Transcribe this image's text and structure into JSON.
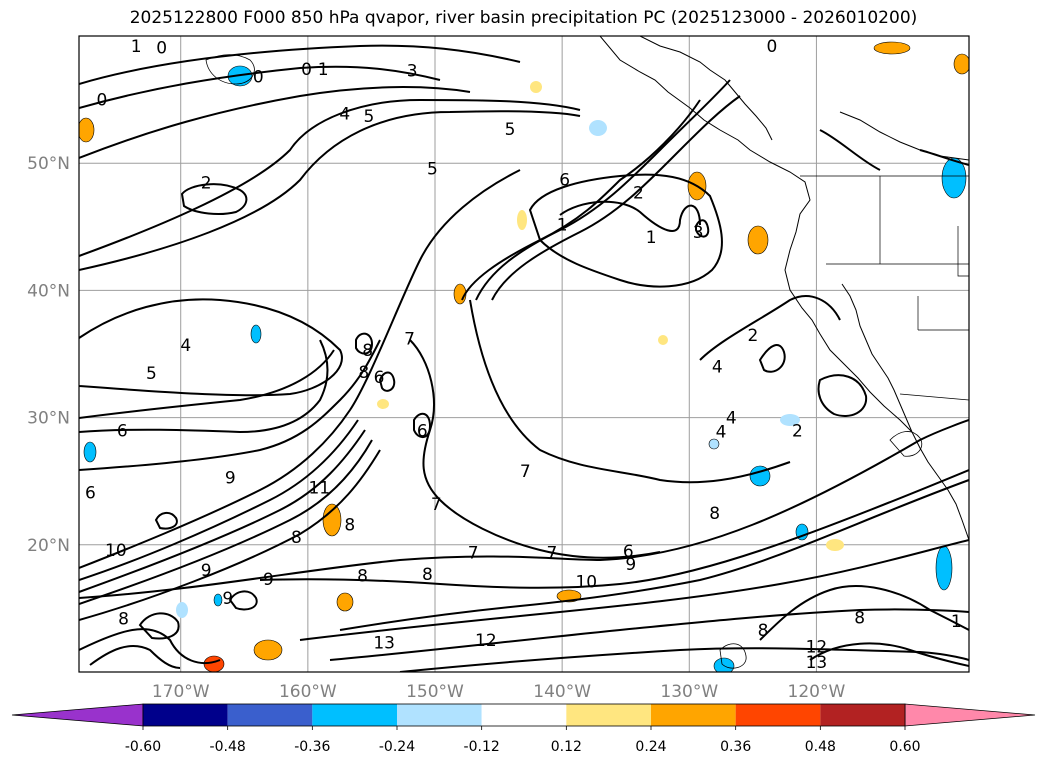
{
  "title": "2025122800 F000 850 hPa qvapor, river basin precipitation PC (2025123000 - 2026010200)",
  "map": {
    "lat_labels": [
      {
        "lat": 50,
        "label": "50°N"
      },
      {
        "lat": 40,
        "label": "40°N"
      },
      {
        "lat": 30,
        "label": "30°N"
      },
      {
        "lat": 20,
        "label": "20°N"
      }
    ],
    "lon_labels": [
      {
        "lon": -170,
        "label": "170°W"
      },
      {
        "lon": -160,
        "label": "160°W"
      },
      {
        "lon": -150,
        "label": "150°W"
      },
      {
        "lon": -140,
        "label": "140°W"
      },
      {
        "lon": -130,
        "label": "130°W"
      },
      {
        "lon": -120,
        "label": "120°W"
      }
    ],
    "extent": {
      "lon_min": -178,
      "lon_max": -108,
      "lat_min": 10,
      "lat_max": 60
    },
    "grid": true,
    "contour_field": "850 hPa qvapor",
    "shaded_field": "river basin precipitation PC"
  },
  "colorbar": {
    "levels": [
      "-0.60",
      "-0.48",
      "-0.36",
      "-0.24",
      "-0.12",
      "0.12",
      "0.24",
      "0.36",
      "0.48",
      "0.60"
    ],
    "colors": [
      "#9932cc",
      "#00008b",
      "#3a5fcd",
      "#00bfff",
      "#b0e2ff",
      "#ffffff",
      "#ffe680",
      "#ffa500",
      "#ff4500",
      "#b22222",
      "#ff88aa"
    ],
    "extend": "both"
  },
  "contour_labels": [
    {
      "text": "1",
      "lon": -173.5,
      "lat": 59.2
    },
    {
      "text": "0",
      "lon": -171.5,
      "lat": 59.1
    },
    {
      "text": "0",
      "lon": -163.9,
      "lat": 56.8
    },
    {
      "text": "1",
      "lon": -158.8,
      "lat": 57.4
    },
    {
      "text": "0",
      "lon": -160.1,
      "lat": 57.4
    },
    {
      "text": "3",
      "lon": -151.8,
      "lat": 57.3
    },
    {
      "text": "0",
      "lon": -176.2,
      "lat": 55.0
    },
    {
      "text": "4",
      "lon": -157.1,
      "lat": 53.9
    },
    {
      "text": "5",
      "lon": -155.2,
      "lat": 53.7
    },
    {
      "text": "5",
      "lon": -144.1,
      "lat": 52.7
    },
    {
      "text": "5",
      "lon": -150.2,
      "lat": 49.6
    },
    {
      "text": "2",
      "lon": -168.0,
      "lat": 48.5
    },
    {
      "text": "6",
      "lon": -139.8,
      "lat": 48.7
    },
    {
      "text": "2",
      "lon": -134.0,
      "lat": 47.7
    },
    {
      "text": "1",
      "lon": -140.0,
      "lat": 45.2
    },
    {
      "text": "1",
      "lon": -133.0,
      "lat": 44.2
    },
    {
      "text": "3",
      "lon": -129.3,
      "lat": 44.6
    },
    {
      "text": "4",
      "lon": -169.6,
      "lat": 35.7
    },
    {
      "text": "5",
      "lon": -172.3,
      "lat": 33.5
    },
    {
      "text": "8",
      "lon": -155.3,
      "lat": 35.3
    },
    {
      "text": "8",
      "lon": -155.6,
      "lat": 33.6
    },
    {
      "text": "6",
      "lon": -154.4,
      "lat": 33.2
    },
    {
      "text": "7",
      "lon": -152.0,
      "lat": 36.2
    },
    {
      "text": "2",
      "lon": -125.0,
      "lat": 36.5
    },
    {
      "text": "4",
      "lon": -127.8,
      "lat": 34.0
    },
    {
      "text": "4",
      "lon": -126.7,
      "lat": 30.0
    },
    {
      "text": "4",
      "lon": -127.5,
      "lat": 28.9
    },
    {
      "text": "2",
      "lon": -121.5,
      "lat": 29.0
    },
    {
      "text": "6",
      "lon": -174.6,
      "lat": 29.0
    },
    {
      "text": "6",
      "lon": -151.0,
      "lat": 29.0
    },
    {
      "text": "9",
      "lon": -166.1,
      "lat": 25.3
    },
    {
      "text": "11",
      "lon": -159.1,
      "lat": 24.5
    },
    {
      "text": "6",
      "lon": -177.1,
      "lat": 24.1
    },
    {
      "text": "7",
      "lon": -149.9,
      "lat": 23.2
    },
    {
      "text": "7",
      "lon": -142.9,
      "lat": 25.8
    },
    {
      "text": "8",
      "lon": -128.0,
      "lat": 22.5
    },
    {
      "text": "10",
      "lon": -175.1,
      "lat": 19.6
    },
    {
      "text": "8",
      "lon": -160.9,
      "lat": 20.6
    },
    {
      "text": "8",
      "lon": -156.7,
      "lat": 21.6
    },
    {
      "text": "7",
      "lon": -147.0,
      "lat": 19.4
    },
    {
      "text": "7",
      "lon": -140.8,
      "lat": 19.4
    },
    {
      "text": "6",
      "lon": -134.8,
      "lat": 19.5
    },
    {
      "text": "9",
      "lon": -134.6,
      "lat": 18.5
    },
    {
      "text": "9",
      "lon": -168.0,
      "lat": 18.0
    },
    {
      "text": "9",
      "lon": -163.1,
      "lat": 17.3
    },
    {
      "text": "8",
      "lon": -155.7,
      "lat": 17.6
    },
    {
      "text": "8",
      "lon": -150.6,
      "lat": 17.7
    },
    {
      "text": "10",
      "lon": -138.1,
      "lat": 17.1
    },
    {
      "text": "9",
      "lon": -166.3,
      "lat": 15.8
    },
    {
      "text": "8",
      "lon": -174.5,
      "lat": 14.2
    },
    {
      "text": "8",
      "lon": -124.2,
      "lat": 13.3
    },
    {
      "text": "12",
      "lon": -146.0,
      "lat": 12.5
    },
    {
      "text": "13",
      "lon": -154.0,
      "lat": 12.3
    },
    {
      "text": "12",
      "lon": -120.0,
      "lat": 12.0
    },
    {
      "text": "13",
      "lon": -120.0,
      "lat": 10.8
    },
    {
      "text": "8",
      "lon": -116.6,
      "lat": 14.3
    },
    {
      "text": "1",
      "lon": -109.0,
      "lat": 14.0
    },
    {
      "text": "0",
      "lon": -123.5,
      "lat": 59.2
    }
  ]
}
